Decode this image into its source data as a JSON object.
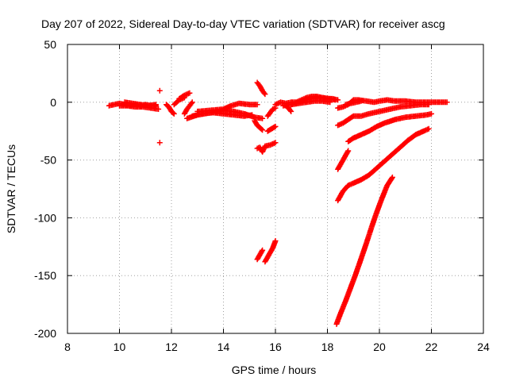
{
  "chart_data": {
    "type": "scatter",
    "title": "Day 207 of 2022, Sidereal Day-to-day VTEC variation (SDTVAR) for receiver ascg",
    "xlabel": "GPS time / hours",
    "ylabel": "SDTVAR / TECUs",
    "xlim": [
      8,
      24
    ],
    "ylim": [
      -200,
      50
    ],
    "xticks": [
      8,
      10,
      12,
      14,
      16,
      18,
      20,
      22,
      24
    ],
    "yticks": [
      -200,
      -150,
      -100,
      -50,
      0,
      50
    ],
    "grid": true,
    "marker": "+",
    "color": "#ff0000",
    "series": [
      {
        "name": "arc-main-a",
        "x": [
          9.6,
          9.8,
          10.0,
          10.2,
          10.4,
          10.6,
          10.8,
          11.0,
          11.2,
          11.4
        ],
        "y": [
          -3,
          -2,
          -1,
          -2,
          -3,
          -2,
          -3,
          -2,
          -3,
          -3
        ]
      },
      {
        "name": "arc-main-b",
        "x": [
          10.0,
          10.3,
          10.6,
          10.9,
          11.2,
          11.5
        ],
        "y": [
          -3,
          -3,
          -4,
          -4,
          -5,
          -6
        ]
      },
      {
        "name": "arc-main-c",
        "x": [
          10.2,
          10.5,
          10.8,
          11.1,
          11.4
        ],
        "y": [
          0,
          -1,
          -2,
          -3,
          -2
        ]
      },
      {
        "name": "outliers",
        "x": [
          11.55,
          11.55
        ],
        "y": [
          10,
          -35
        ]
      },
      {
        "name": "arc-12a",
        "x": [
          11.8,
          11.9,
          12.0,
          12.1
        ],
        "y": [
          -2,
          -4,
          -8,
          -10
        ]
      },
      {
        "name": "arc-12b",
        "x": [
          12.1,
          12.3,
          12.5
        ],
        "y": [
          -2,
          2,
          4
        ]
      },
      {
        "name": "arc-12c",
        "x": [
          12.3,
          12.5,
          12.7
        ],
        "y": [
          3,
          6,
          8
        ]
      },
      {
        "name": "arc-12d",
        "x": [
          12.5,
          12.6,
          12.7,
          12.8
        ],
        "y": [
          -10,
          -6,
          -3,
          0
        ]
      },
      {
        "name": "arc-mid-lower",
        "x": [
          12.6,
          13.0,
          13.5,
          14.0,
          14.4,
          14.8,
          15.2,
          15.5
        ],
        "y": [
          -14,
          -11,
          -9,
          -7,
          -8,
          -10,
          -13,
          -14
        ]
      },
      {
        "name": "arc-mid-upper",
        "x": [
          12.8,
          13.2,
          13.6,
          14.0,
          14.4,
          14.8,
          15.1
        ],
        "y": [
          -12,
          -10,
          -9,
          -10,
          -11,
          -12,
          -11
        ]
      },
      {
        "name": "arc-mid-top",
        "x": [
          13.0,
          13.5,
          14.0,
          14.3,
          14.6,
          15.0,
          15.3
        ],
        "y": [
          -8,
          -7,
          -6,
          -3,
          -1,
          -2,
          -2
        ]
      },
      {
        "name": "arc-15-rise",
        "x": [
          15.3,
          15.4,
          15.5,
          15.6
        ],
        "y": [
          17,
          14,
          10,
          7
        ]
      },
      {
        "name": "arc-15-drop",
        "x": [
          15.2,
          15.3,
          15.4,
          15.5
        ],
        "y": [
          -16,
          -20,
          -22,
          -24
        ]
      },
      {
        "name": "arc-15-low",
        "x": [
          15.3,
          15.4,
          15.5,
          15.6,
          15.8,
          16.0
        ],
        "y": [
          -40,
          -39,
          -43,
          -38,
          -37,
          -35
        ]
      },
      {
        "name": "arc-15-mid",
        "x": [
          15.7,
          15.85,
          16.0
        ],
        "y": [
          -25,
          -23,
          -21
        ]
      },
      {
        "name": "arc-15-up",
        "x": [
          15.7,
          15.8,
          15.9,
          16.0
        ],
        "y": [
          -12,
          -9,
          -6,
          -5
        ]
      },
      {
        "name": "arc-deep-a",
        "x": [
          15.3,
          15.4,
          15.5
        ],
        "y": [
          -136,
          -132,
          -128
        ]
      },
      {
        "name": "arc-deep-b",
        "x": [
          15.6,
          15.75,
          15.9,
          16.0
        ],
        "y": [
          -138,
          -132,
          -126,
          -120
        ]
      },
      {
        "name": "arc-16-18",
        "x": [
          16.0,
          16.2,
          16.4,
          16.6,
          16.8,
          17.0,
          17.2,
          17.4,
          17.6,
          17.8,
          18.0,
          18.2,
          18.4
        ],
        "y": [
          -2,
          0,
          -1,
          0,
          0,
          2,
          4,
          5,
          5,
          4,
          3,
          3,
          2
        ]
      },
      {
        "name": "arc-16-18b",
        "x": [
          16.3,
          16.6,
          16.9,
          17.2,
          17.5,
          17.8,
          18.1,
          18.3
        ],
        "y": [
          -3,
          -2,
          0,
          2,
          4,
          4,
          3,
          2
        ]
      },
      {
        "name": "arc-16-18c",
        "x": [
          16.6,
          16.9,
          17.2,
          17.5,
          17.8,
          18.1
        ],
        "y": [
          -2,
          -1,
          0,
          1,
          1,
          0
        ]
      },
      {
        "name": "arc-16-short",
        "x": [
          16.4,
          16.5,
          16.6
        ],
        "y": [
          -3,
          -5,
          -8
        ]
      },
      {
        "name": "arc-late-zero",
        "x": [
          18.4,
          18.6,
          18.8,
          19.0,
          19.2,
          19.5,
          19.8,
          20.0,
          20.3,
          20.6,
          21.0,
          21.4,
          21.8,
          22.2,
          22.6
        ],
        "y": [
          -5,
          -4,
          -2,
          2,
          2,
          1,
          0,
          1,
          2,
          1,
          1,
          0,
          0,
          0,
          0
        ]
      },
      {
        "name": "arc-late-10",
        "x": [
          18.4,
          18.6,
          18.8,
          19.0,
          19.3,
          19.6,
          20.0,
          20.4,
          20.8,
          21.2,
          21.6,
          21.9
        ],
        "y": [
          -20,
          -18,
          -15,
          -12,
          -12,
          -10,
          -8,
          -6,
          -4,
          -3,
          -2,
          -2
        ]
      },
      {
        "name": "arc-late-10b",
        "x": [
          18.7,
          18.9,
          19.1,
          19.3
        ],
        "y": [
          -2,
          -1,
          0,
          1
        ]
      },
      {
        "name": "arc-late-30",
        "x": [
          18.8,
          19.0,
          19.3,
          19.6,
          19.9,
          20.2,
          20.6,
          21.0,
          21.4,
          21.8,
          22.0
        ],
        "y": [
          -34,
          -31,
          -28,
          -25,
          -21,
          -18,
          -15,
          -13,
          -12,
          -11,
          -10
        ]
      },
      {
        "name": "arc-late-60",
        "x": [
          18.4,
          18.5,
          18.6,
          18.7,
          18.8
        ],
        "y": [
          -58,
          -54,
          -50,
          -46,
          -42
        ]
      },
      {
        "name": "arc-late-75",
        "x": [
          18.4,
          18.6,
          18.8,
          19.0,
          19.3,
          19.6,
          19.9,
          20.2,
          20.5,
          20.8,
          21.1,
          21.4,
          21.7,
          21.9
        ],
        "y": [
          -85,
          -77,
          -72,
          -70,
          -67,
          -63,
          -57,
          -51,
          -45,
          -39,
          -33,
          -28,
          -25,
          -23
        ]
      },
      {
        "name": "arc-late-deep",
        "x": [
          18.35,
          18.5,
          18.7,
          18.9,
          19.1,
          19.3,
          19.5,
          19.7,
          19.9,
          20.1,
          20.3,
          20.5
        ],
        "y": [
          -192,
          -183,
          -172,
          -160,
          -148,
          -135,
          -122,
          -108,
          -95,
          -83,
          -72,
          -65
        ]
      }
    ]
  }
}
